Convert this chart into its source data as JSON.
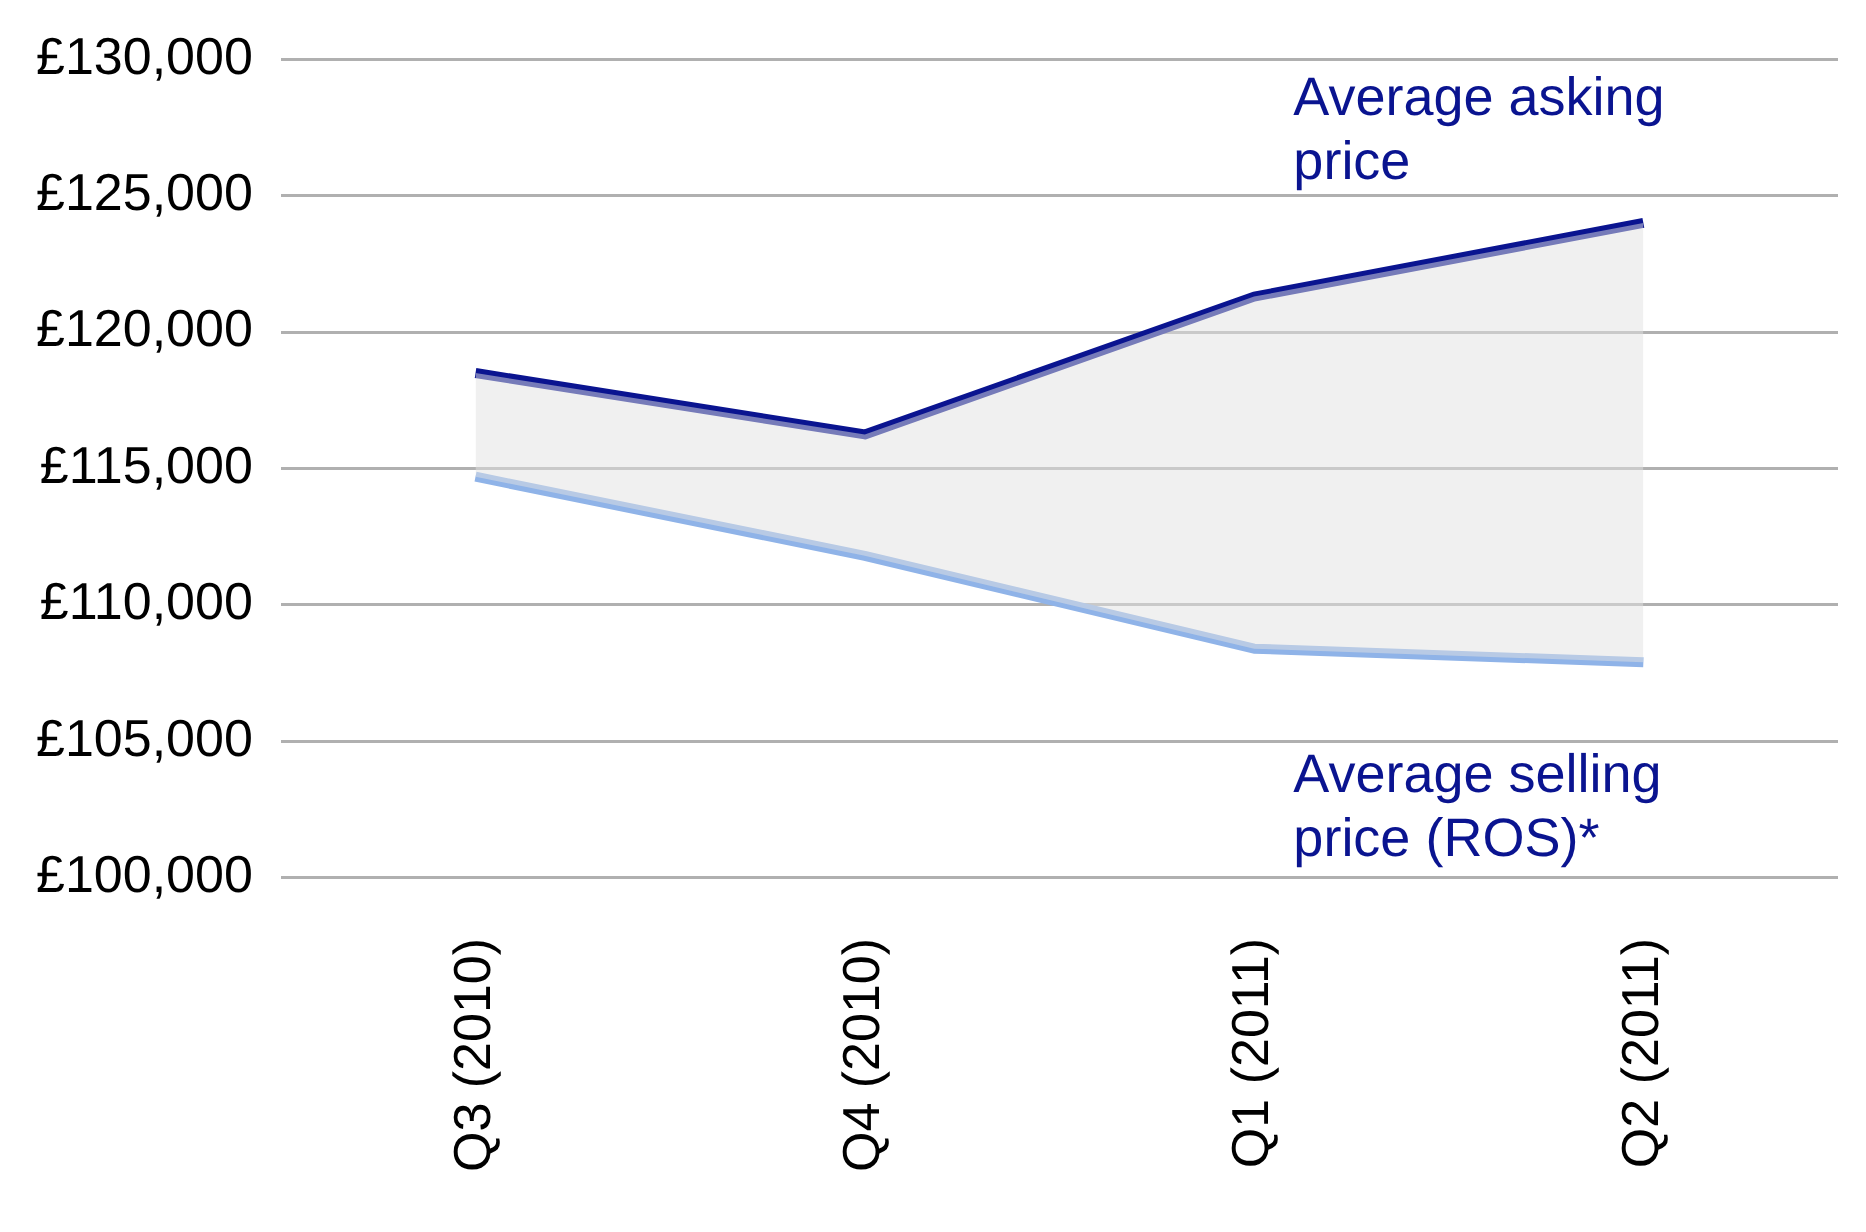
{
  "chart_data": {
    "type": "line",
    "categories": [
      "Q3 (2010)",
      "Q4 (2010)",
      "Q1 (2011)",
      "Q2 (2011)"
    ],
    "series": [
      {
        "name": "Average asking price",
        "color": "#0a1490",
        "values": [
          118500,
          116250,
          121300,
          124000
        ],
        "lower": [
          114700,
          111800,
          108400,
          107900
        ],
        "upper": [
          118500,
          116250,
          121300,
          124000
        ]
      },
      {
        "name": "Average selling price (ROS)*",
        "color": "#8fb3e8",
        "values": [
          114700,
          111800,
          108400,
          107900
        ]
      }
    ],
    "ylim": [
      100000,
      130000
    ],
    "yticks": [
      {
        "value": 100000,
        "label": "£100,000"
      },
      {
        "value": 105000,
        "label": "£105,000"
      },
      {
        "value": 110000,
        "label": "£110,000"
      },
      {
        "value": 115000,
        "label": "£115,000"
      },
      {
        "value": 120000,
        "label": "£120,000"
      },
      {
        "value": 125000,
        "label": "£125,000"
      },
      {
        "value": 130000,
        "label": "£130,000"
      }
    ],
    "grid": "y",
    "legend": false,
    "marker": "none",
    "line_style": "solid"
  }
}
